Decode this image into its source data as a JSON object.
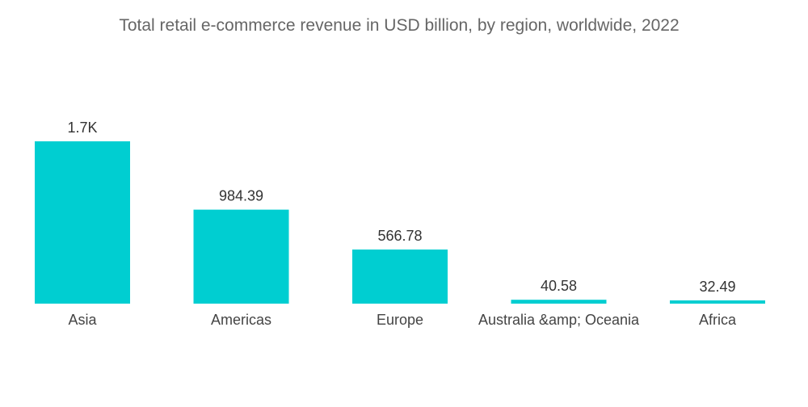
{
  "chart_data": {
    "type": "bar",
    "title": "Total retail e-commerce revenue in USD billion, by region, worldwide, 2022",
    "categories": [
      "Asia",
      "Americas",
      "Europe",
      "Australia &amp; Oceania",
      "Africa"
    ],
    "values": [
      1700,
      984.39,
      566.78,
      40.58,
      32.49
    ],
    "data_labels": [
      "1.7K",
      "984.39",
      "566.78",
      "40.58",
      "32.49"
    ],
    "xlabel": "",
    "ylabel": "",
    "ylim": [
      0,
      1700
    ],
    "grid": false,
    "legend": "none",
    "bar_color": "#00CED1"
  }
}
